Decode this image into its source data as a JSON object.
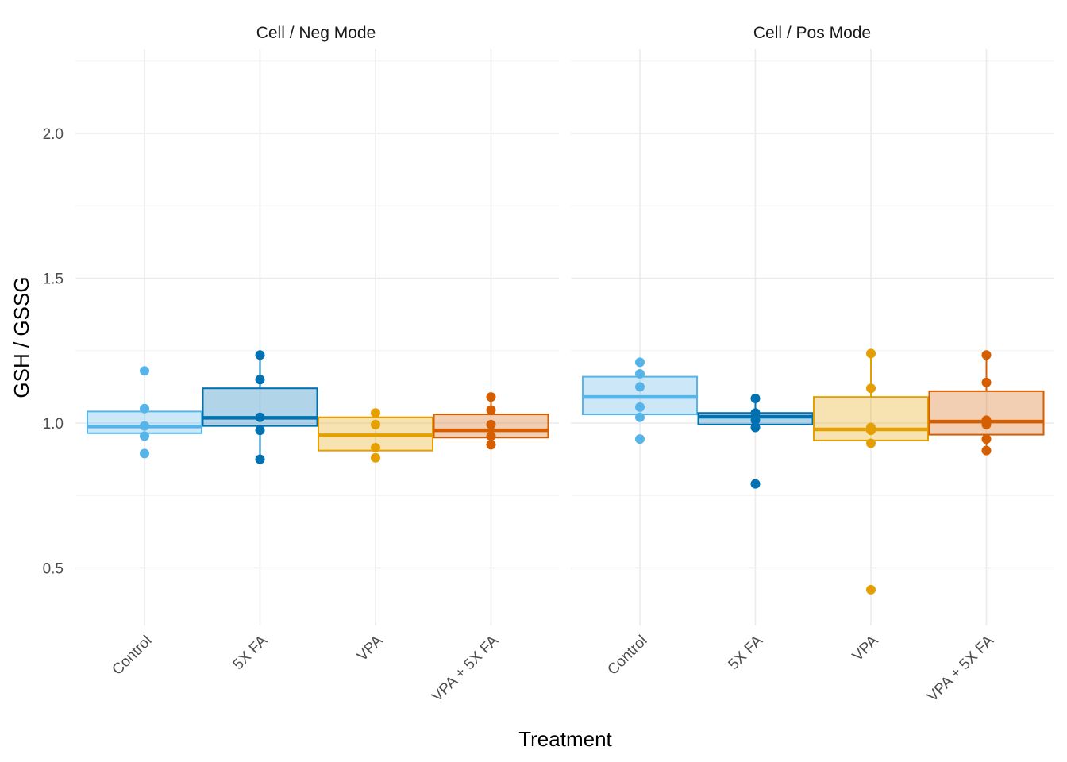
{
  "chart_data": {
    "type": "box",
    "xlabel": "Treatment",
    "ylabel": "GSH / GSSG",
    "ylim": [
      0.32,
      2.28
    ],
    "yticks": [
      "0.5",
      "1.0",
      "1.5",
      "2.0"
    ],
    "categories": [
      "Control",
      "5X FA",
      "VPA",
      "VPA + 5X FA"
    ],
    "colors": {
      "Control": "#56B4E9",
      "5X FA": "#0072B2",
      "VPA": "#E69F00",
      "VPA + 5X FA": "#D55E00"
    },
    "grid": true,
    "legend": "none",
    "panels": [
      {
        "title": "Cell / Neg Mode",
        "groups": [
          {
            "category": "Control",
            "q1": 0.965,
            "median": 0.988,
            "q3": 1.04,
            "whisker_low": 0.965,
            "whisker_high": 1.04,
            "points": [
              1.18,
              1.05,
              0.99,
              0.955,
              0.895
            ]
          },
          {
            "category": "5X FA",
            "q1": 0.99,
            "median": 1.018,
            "q3": 1.12,
            "whisker_low": 0.875,
            "whisker_high": 1.235,
            "points": [
              1.235,
              1.15,
              1.02,
              0.975,
              0.875
            ]
          },
          {
            "category": "VPA",
            "q1": 0.905,
            "median": 0.958,
            "q3": 1.02,
            "whisker_low": 0.905,
            "whisker_high": 1.02,
            "points": [
              1.035,
              0.995,
              0.915,
              0.88
            ]
          },
          {
            "category": "VPA + 5X FA",
            "q1": 0.95,
            "median": 0.975,
            "q3": 1.03,
            "whisker_low": 0.93,
            "whisker_high": 1.09,
            "points": [
              1.09,
              1.045,
              0.995,
              0.955,
              0.925
            ]
          }
        ]
      },
      {
        "title": "Cell / Pos Mode",
        "groups": [
          {
            "category": "Control",
            "q1": 1.03,
            "median": 1.09,
            "q3": 1.16,
            "whisker_low": 1.03,
            "whisker_high": 1.16,
            "points": [
              1.21,
              1.17,
              1.125,
              1.055,
              1.02,
              0.945
            ]
          },
          {
            "category": "5X FA",
            "q1": 0.995,
            "median": 1.022,
            "q3": 1.035,
            "whisker_low": 0.985,
            "whisker_high": 1.085,
            "points": [
              1.085,
              1.035,
              1.01,
              0.985,
              0.79
            ]
          },
          {
            "category": "VPA",
            "q1": 0.94,
            "median": 0.978,
            "q3": 1.09,
            "whisker_low": 0.94,
            "whisker_high": 1.24,
            "points": [
              1.24,
              1.12,
              0.985,
              0.975,
              0.93,
              0.425
            ]
          },
          {
            "category": "VPA + 5X FA",
            "q1": 0.96,
            "median": 1.005,
            "q3": 1.11,
            "whisker_low": 0.905,
            "whisker_high": 1.235,
            "points": [
              1.235,
              1.14,
              1.01,
              0.995,
              0.945,
              0.905
            ]
          }
        ]
      }
    ]
  }
}
